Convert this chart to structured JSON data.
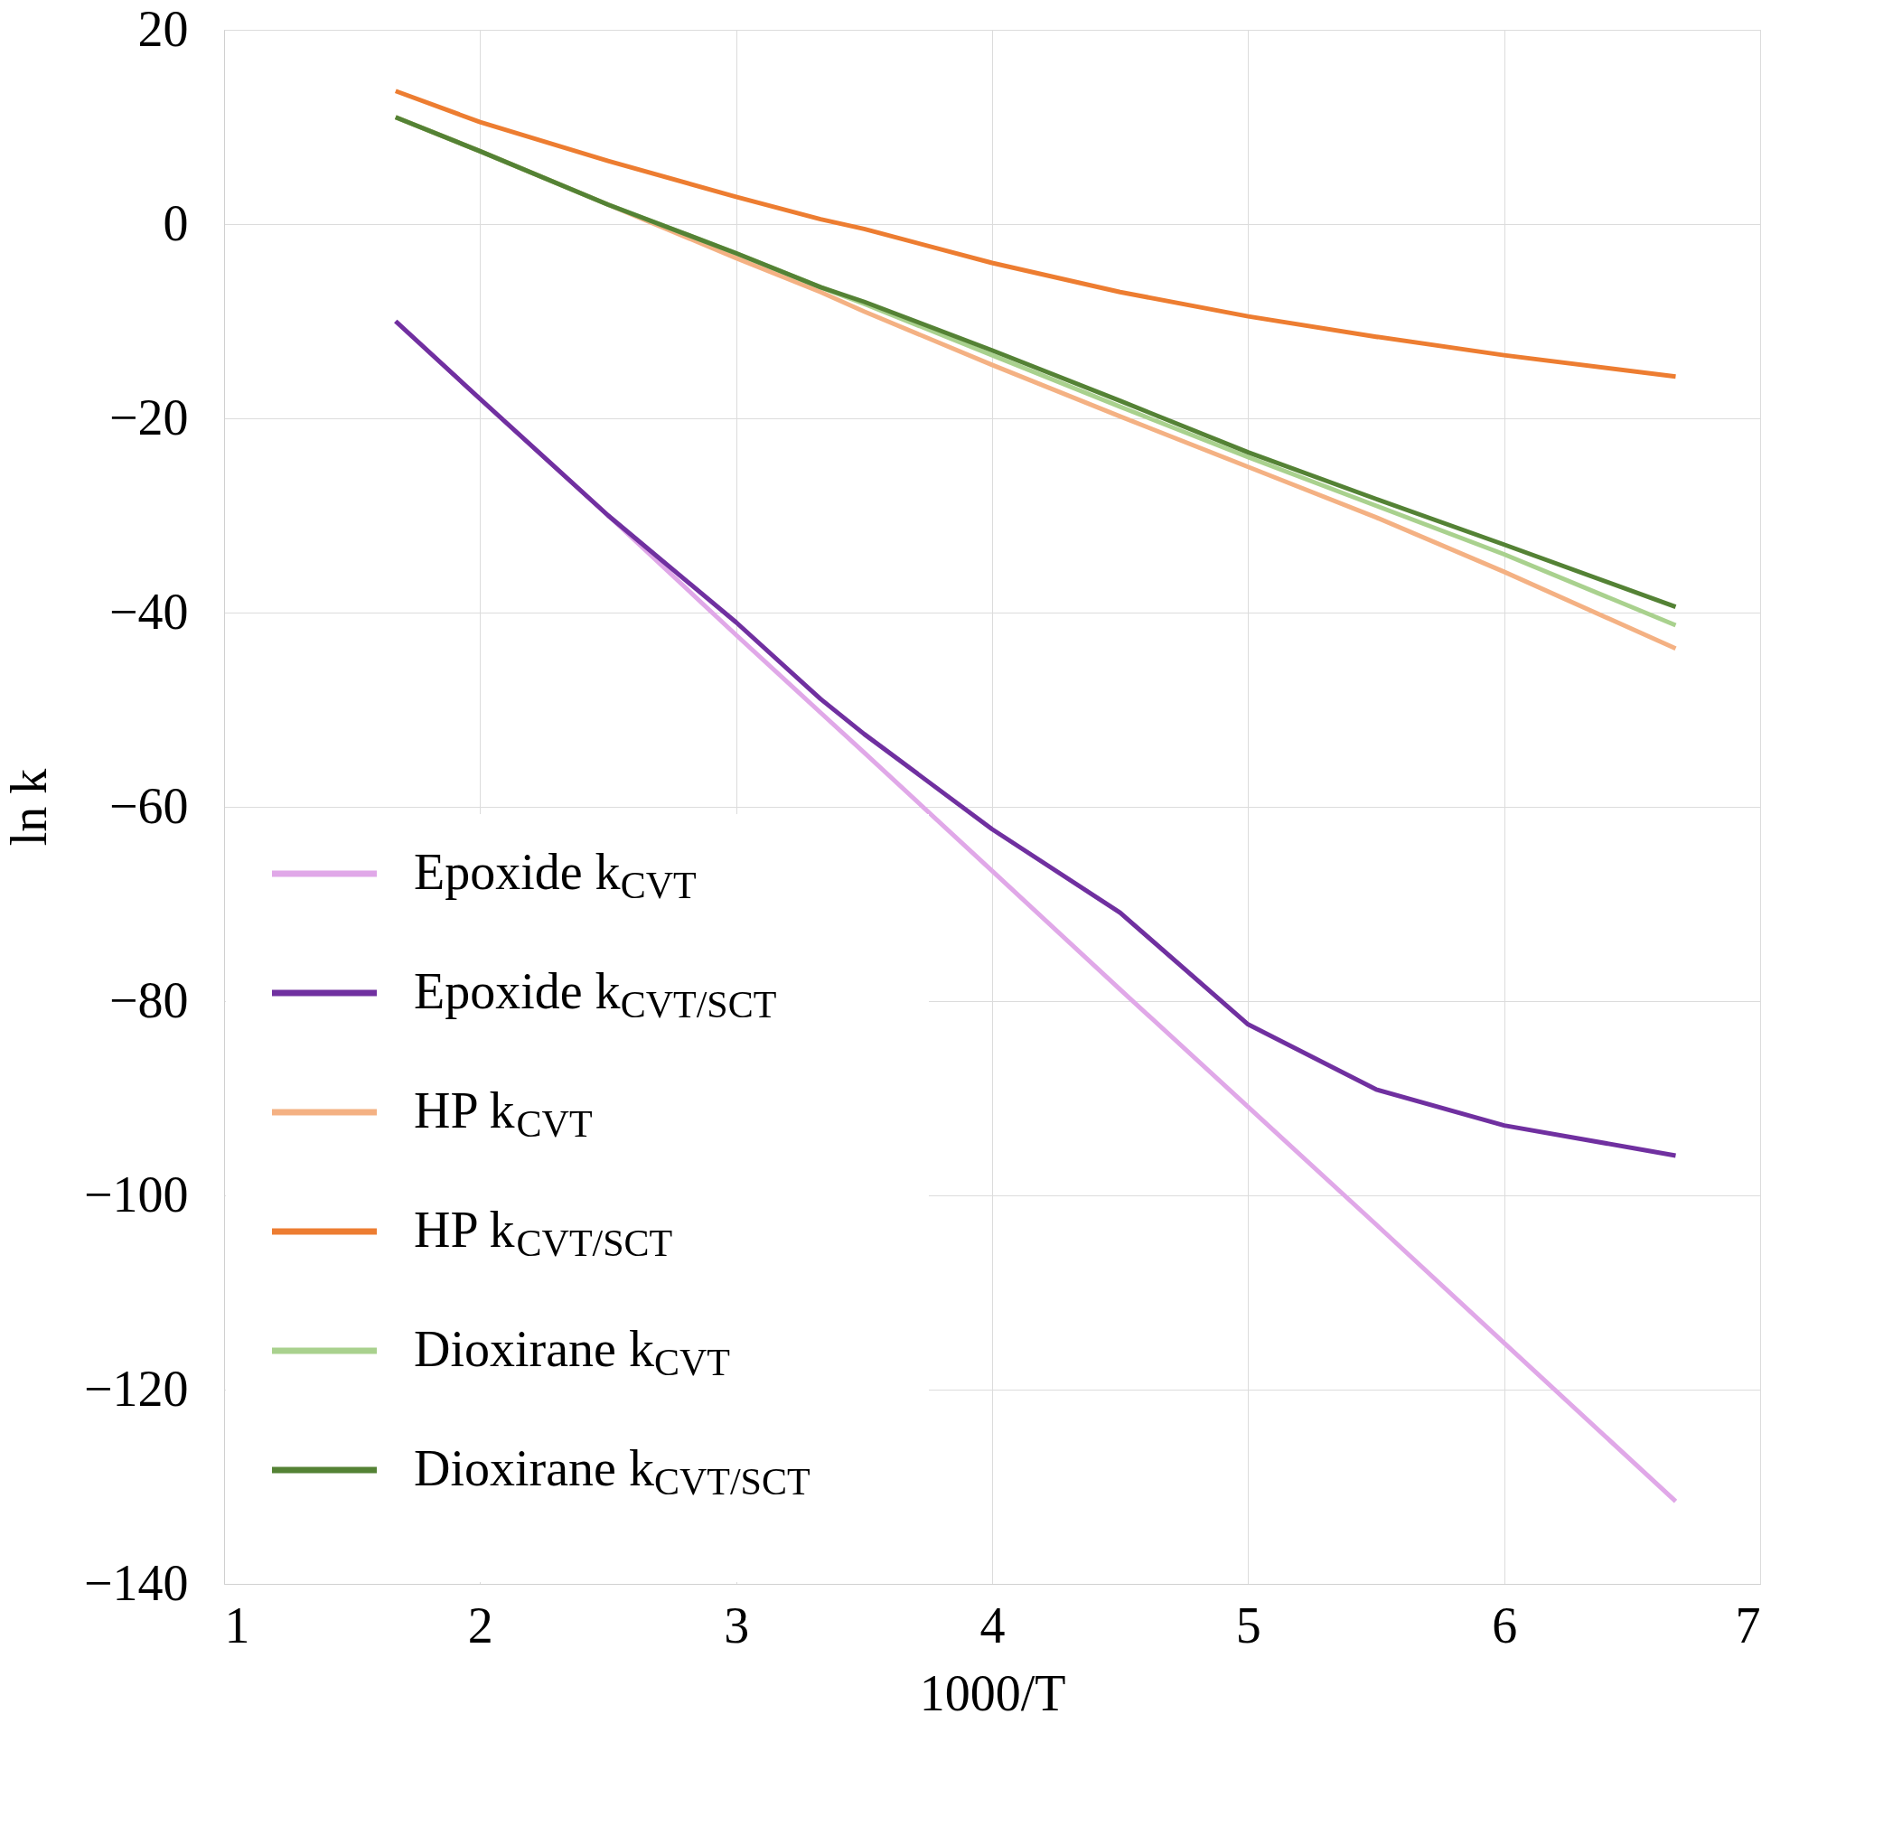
{
  "chart_data": {
    "type": "line",
    "xlabel": "1000/T",
    "ylabel": "ln k",
    "x": [
      1.67,
      2,
      2.5,
      3,
      3.33,
      3.5,
      4,
      4.5,
      5,
      5.5,
      6,
      6.67
    ],
    "series": [
      {
        "name": "Epoxide k$_{CVT}$",
        "color": "#e0a8e8",
        "values": [
          -10,
          -18,
          -30,
          -42.3,
          -50.3,
          -54.4,
          -66.6,
          -78.8,
          -90.9,
          -103,
          -115.2,
          -131.5
        ]
      },
      {
        "name": "Epoxide k$_{CVT/SCT}$",
        "color": "#7030a0",
        "values": [
          -10,
          -18,
          -30,
          -41,
          -48.9,
          -52.5,
          -62.3,
          -70.9,
          -82.4,
          -89.1,
          -92.8,
          -95.9
        ]
      },
      {
        "name": "HP k$_{CVT}$",
        "color": "#f4b183",
        "values": [
          11,
          7.5,
          2,
          -3.5,
          -7,
          -9,
          -14.5,
          -19.8,
          -25,
          -30.2,
          -35.8,
          -43.7
        ]
      },
      {
        "name": "HP k$_{CVT/SCT}$",
        "color": "#ed7d31",
        "values": [
          13.7,
          10.5,
          6.5,
          2.8,
          0.5,
          -0.5,
          -4,
          -7,
          -9.5,
          -11.6,
          -13.5,
          -15.7
        ]
      },
      {
        "name": "Dioxirane k$_{CVT}$",
        "color": "#a9d18e",
        "values": [
          11,
          7.5,
          2,
          -3,
          -6.5,
          -8.2,
          -13.5,
          -18.8,
          -24,
          -29,
          -34,
          -41.3
        ]
      },
      {
        "name": "Dioxirane k$_{CVT/SCT}$",
        "color": "#548235",
        "values": [
          11,
          7.5,
          2,
          -3,
          -6.5,
          -8,
          -13,
          -18.2,
          -23.5,
          -28.3,
          -33,
          -39.4
        ]
      }
    ],
    "xlim": [
      1,
      7
    ],
    "xticks": [
      1,
      2,
      3,
      4,
      5,
      6,
      7
    ],
    "ylim": [
      -140,
      20
    ],
    "yticks": [
      -140,
      -120,
      -100,
      -80,
      -60,
      -40,
      -20,
      0,
      20
    ],
    "grid": true,
    "legend": "bottom left",
    "marker": "none",
    "line_style": "solid"
  }
}
